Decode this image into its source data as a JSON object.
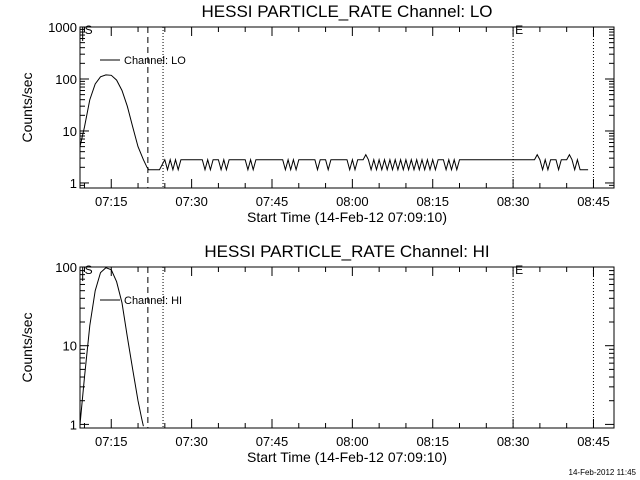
{
  "footer_text": "14-Feb-2012 11:45",
  "chart_data": [
    {
      "type": "line",
      "title": "HESSI PARTICLE_RATE Channel: LO",
      "xlabel": "Start Time (14-Feb-12 07:09:10)",
      "ylabel": "Counts/sec",
      "xlim": [
        "07:09:10",
        "08:48:50"
      ],
      "ylim": [
        0.8,
        1000
      ],
      "yscale": "log",
      "x_ticks": [
        "07:15",
        "07:30",
        "07:45",
        "08:00",
        "08:15",
        "08:30",
        "08:45"
      ],
      "y_ticks": [
        {
          "value": 1,
          "label": "1"
        },
        {
          "value": 10,
          "label": "10"
        },
        {
          "value": 100,
          "label": "100"
        },
        {
          "value": 1000,
          "label": "1000"
        }
      ],
      "legend": {
        "label": "Channel: LO",
        "position": "top-left"
      },
      "markers": [
        {
          "time": "07:09:40",
          "label": "S",
          "style": "solid"
        },
        {
          "time": "07:21:50",
          "label": "",
          "style": "dashed"
        },
        {
          "time": "07:24:40",
          "label": "",
          "style": "dotted"
        },
        {
          "time": "08:30:00",
          "label": "E",
          "style": "dotted"
        },
        {
          "time": "08:45:00",
          "label": "",
          "style": "dotted"
        }
      ],
      "series": [
        {
          "name": "Channel: LO",
          "points": [
            [
              "07:09:10",
              5
            ],
            [
              "07:10:00",
              12
            ],
            [
              "07:11:00",
              40
            ],
            [
              "07:12:00",
              80
            ],
            [
              "07:13:00",
              110
            ],
            [
              "07:14:00",
              120
            ],
            [
              "07:15:00",
              118
            ],
            [
              "07:16:00",
              95
            ],
            [
              "07:17:00",
              60
            ],
            [
              "07:18:00",
              30
            ],
            [
              "07:19:00",
              12
            ],
            [
              "07:20:00",
              5
            ],
            [
              "07:21:00",
              2.8
            ],
            [
              "07:21:40",
              2
            ],
            [
              "07:22:00",
              1.8
            ],
            [
              "07:24:00",
              1.8
            ],
            [
              "07:25:00",
              2.8
            ],
            [
              "07:25:30",
              1.8
            ],
            [
              "07:26:00",
              2.8
            ],
            [
              "07:26:30",
              1.8
            ],
            [
              "07:27:00",
              2.8
            ],
            [
              "07:27:30",
              1.8
            ],
            [
              "07:28:00",
              2.8
            ],
            [
              "07:32:00",
              2.8
            ],
            [
              "07:32:30",
              1.8
            ],
            [
              "07:33:00",
              2.8
            ],
            [
              "07:33:30",
              1.8
            ],
            [
              "07:34:00",
              2.8
            ],
            [
              "07:35:00",
              2.8
            ],
            [
              "07:35:30",
              1.8
            ],
            [
              "07:36:00",
              2.8
            ],
            [
              "07:36:30",
              1.8
            ],
            [
              "07:37:00",
              2.8
            ],
            [
              "07:40:00",
              2.8
            ],
            [
              "07:40:30",
              1.8
            ],
            [
              "07:41:00",
              2.8
            ],
            [
              "07:41:30",
              1.8
            ],
            [
              "07:42:00",
              2.8
            ],
            [
              "07:46:00",
              2.8
            ],
            [
              "07:47:00",
              2.8
            ],
            [
              "07:47:30",
              1.8
            ],
            [
              "07:48:00",
              2.8
            ],
            [
              "07:48:30",
              1.8
            ],
            [
              "07:49:00",
              2.8
            ],
            [
              "07:49:30",
              1.8
            ],
            [
              "07:50:00",
              2.8
            ],
            [
              "07:53:00",
              2.8
            ],
            [
              "07:53:30",
              1.8
            ],
            [
              "07:54:00",
              2.8
            ],
            [
              "07:55:00",
              2.8
            ],
            [
              "07:55:30",
              1.8
            ],
            [
              "07:56:00",
              2.8
            ],
            [
              "07:59:00",
              2.8
            ],
            [
              "07:59:30",
              1.8
            ],
            [
              "08:00:00",
              2.8
            ],
            [
              "08:00:30",
              1.8
            ],
            [
              "08:01:00",
              2.8
            ],
            [
              "08:02:00",
              2.8
            ],
            [
              "08:02:30",
              3.5
            ],
            [
              "08:03:00",
              2.8
            ],
            [
              "08:03:30",
              1.8
            ],
            [
              "08:04:00",
              2.8
            ],
            [
              "08:04:30",
              1.8
            ],
            [
              "08:05:00",
              2.8
            ],
            [
              "08:05:30",
              1.8
            ],
            [
              "08:06:00",
              2.8
            ],
            [
              "08:06:30",
              1.8
            ],
            [
              "08:07:00",
              2.8
            ],
            [
              "08:07:30",
              1.8
            ],
            [
              "08:08:00",
              2.8
            ],
            [
              "08:08:30",
              1.8
            ],
            [
              "08:09:00",
              2.8
            ],
            [
              "08:09:30",
              1.8
            ],
            [
              "08:10:00",
              2.8
            ],
            [
              "08:10:30",
              1.8
            ],
            [
              "08:11:00",
              2.8
            ],
            [
              "08:11:30",
              1.8
            ],
            [
              "08:12:00",
              2.8
            ],
            [
              "08:12:30",
              1.8
            ],
            [
              "08:13:00",
              2.8
            ],
            [
              "08:13:30",
              1.8
            ],
            [
              "08:14:00",
              2.8
            ],
            [
              "08:14:30",
              1.8
            ],
            [
              "08:15:00",
              2.8
            ],
            [
              "08:15:30",
              1.8
            ],
            [
              "08:16:00",
              2.8
            ],
            [
              "08:17:00",
              2.8
            ],
            [
              "08:17:30",
              1.8
            ],
            [
              "08:18:00",
              2.8
            ],
            [
              "08:18:30",
              1.8
            ],
            [
              "08:19:00",
              2.8
            ],
            [
              "08:19:30",
              1.8
            ],
            [
              "08:20:00",
              2.8
            ],
            [
              "08:34:00",
              2.8
            ],
            [
              "08:34:30",
              3.5
            ],
            [
              "08:35:00",
              2.8
            ],
            [
              "08:35:30",
              1.8
            ],
            [
              "08:36:00",
              2.8
            ],
            [
              "08:36:30",
              1.8
            ],
            [
              "08:37:00",
              2.8
            ],
            [
              "08:38:00",
              2.8
            ],
            [
              "08:38:30",
              1.8
            ],
            [
              "08:39:00",
              2.8
            ],
            [
              "08:40:00",
              2.8
            ],
            [
              "08:40:30",
              3.5
            ],
            [
              "08:41:00",
              2.8
            ],
            [
              "08:41:30",
              1.8
            ],
            [
              "08:42:00",
              2.8
            ],
            [
              "08:42:30",
              1.8
            ],
            [
              "08:43:00",
              1.8
            ],
            [
              "08:44:00",
              1.8
            ]
          ]
        }
      ]
    },
    {
      "type": "line",
      "title": "HESSI PARTICLE_RATE Channel: HI",
      "xlabel": "Start Time (14-Feb-12 07:09:10)",
      "ylabel": "Counts/sec",
      "xlim": [
        "07:09:10",
        "08:48:50"
      ],
      "ylim": [
        0.9,
        100
      ],
      "yscale": "log",
      "x_ticks": [
        "07:15",
        "07:30",
        "07:45",
        "08:00",
        "08:15",
        "08:30",
        "08:45"
      ],
      "y_ticks": [
        {
          "value": 1,
          "label": "1"
        },
        {
          "value": 10,
          "label": "10"
        },
        {
          "value": 100,
          "label": "100"
        }
      ],
      "legend": {
        "label": "Channel: HI",
        "position": "top-left"
      },
      "markers": [
        {
          "time": "07:09:40",
          "label": "S",
          "style": "solid"
        },
        {
          "time": "07:21:50",
          "label": "",
          "style": "dashed"
        },
        {
          "time": "07:24:40",
          "label": "",
          "style": "dotted"
        },
        {
          "time": "08:30:00",
          "label": "E",
          "style": "dotted"
        },
        {
          "time": "08:45:00",
          "label": "",
          "style": "dotted"
        }
      ],
      "series": [
        {
          "name": "Channel: HI",
          "points": [
            [
              "07:09:10",
              1
            ],
            [
              "07:10:00",
              4
            ],
            [
              "07:11:00",
              18
            ],
            [
              "07:12:00",
              50
            ],
            [
              "07:13:00",
              85
            ],
            [
              "07:14:00",
              98
            ],
            [
              "07:15:00",
              92
            ],
            [
              "07:16:00",
              65
            ],
            [
              "07:17:00",
              35
            ],
            [
              "07:18:00",
              13
            ],
            [
              "07:19:00",
              5
            ],
            [
              "07:20:00",
              2
            ],
            [
              "07:20:40",
              1.2
            ],
            [
              "07:21:00",
              0.95
            ]
          ]
        }
      ]
    }
  ]
}
